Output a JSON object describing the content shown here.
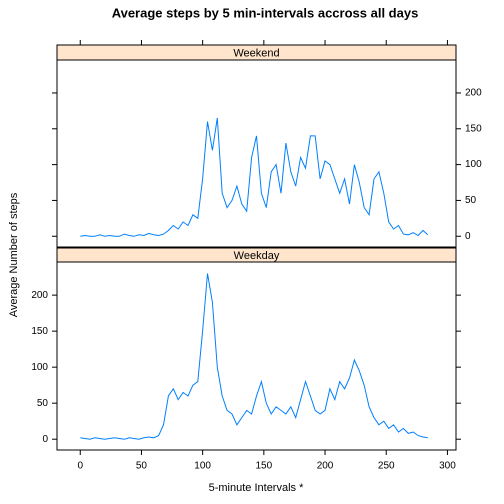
{
  "chart_data": {
    "type": "line",
    "title": "Average steps by 5 min-intervals accross all days",
    "x_label": "5-minute Intervals *",
    "y_label": "Average Number of steps",
    "x": [
      0,
      4,
      8,
      12,
      16,
      20,
      24,
      28,
      32,
      36,
      40,
      44,
      48,
      52,
      56,
      60,
      64,
      68,
      72,
      76,
      80,
      84,
      88,
      92,
      96,
      100,
      104,
      108,
      112,
      116,
      120,
      124,
      128,
      132,
      136,
      140,
      144,
      148,
      152,
      156,
      160,
      164,
      168,
      172,
      176,
      180,
      184,
      188,
      192,
      196,
      200,
      204,
      208,
      212,
      216,
      220,
      224,
      228,
      232,
      236,
      240,
      244,
      248,
      252,
      256,
      260,
      264,
      268,
      272,
      276,
      280,
      284
    ],
    "series": [
      {
        "name": "Weekend",
        "color": "#0080ff",
        "values": [
          0,
          1,
          0,
          0,
          2,
          0,
          1,
          0,
          0,
          3,
          1,
          0,
          2,
          1,
          4,
          2,
          1,
          3,
          8,
          15,
          10,
          20,
          15,
          30,
          25,
          80,
          160,
          120,
          165,
          60,
          40,
          50,
          70,
          45,
          35,
          110,
          140,
          60,
          40,
          90,
          100,
          60,
          130,
          90,
          70,
          110,
          95,
          140,
          140,
          80,
          105,
          100,
          80,
          60,
          80,
          45,
          100,
          75,
          40,
          30,
          80,
          90,
          60,
          20,
          10,
          15,
          3,
          2,
          5,
          1,
          8,
          2
        ]
      },
      {
        "name": "Weekday",
        "color": "#0080ff",
        "values": [
          2,
          1,
          0,
          2,
          1,
          0,
          1,
          2,
          1,
          0,
          2,
          1,
          0,
          2,
          3,
          2,
          5,
          20,
          60,
          70,
          55,
          65,
          60,
          75,
          80,
          150,
          230,
          190,
          100,
          60,
          40,
          35,
          20,
          30,
          40,
          35,
          60,
          80,
          50,
          35,
          45,
          40,
          35,
          45,
          30,
          55,
          80,
          60,
          40,
          35,
          40,
          70,
          55,
          80,
          70,
          85,
          110,
          95,
          75,
          45,
          30,
          20,
          25,
          15,
          20,
          10,
          15,
          8,
          10,
          5,
          3,
          2
        ]
      }
    ],
    "xlim": [
      -19,
      307
    ],
    "xticks": [
      0,
      50,
      100,
      150,
      200,
      250,
      300
    ],
    "ylim": [
      -15,
      246
    ],
    "yticks": [
      0,
      50,
      100,
      150,
      200
    ],
    "strip_color": "#ffe5cc"
  }
}
